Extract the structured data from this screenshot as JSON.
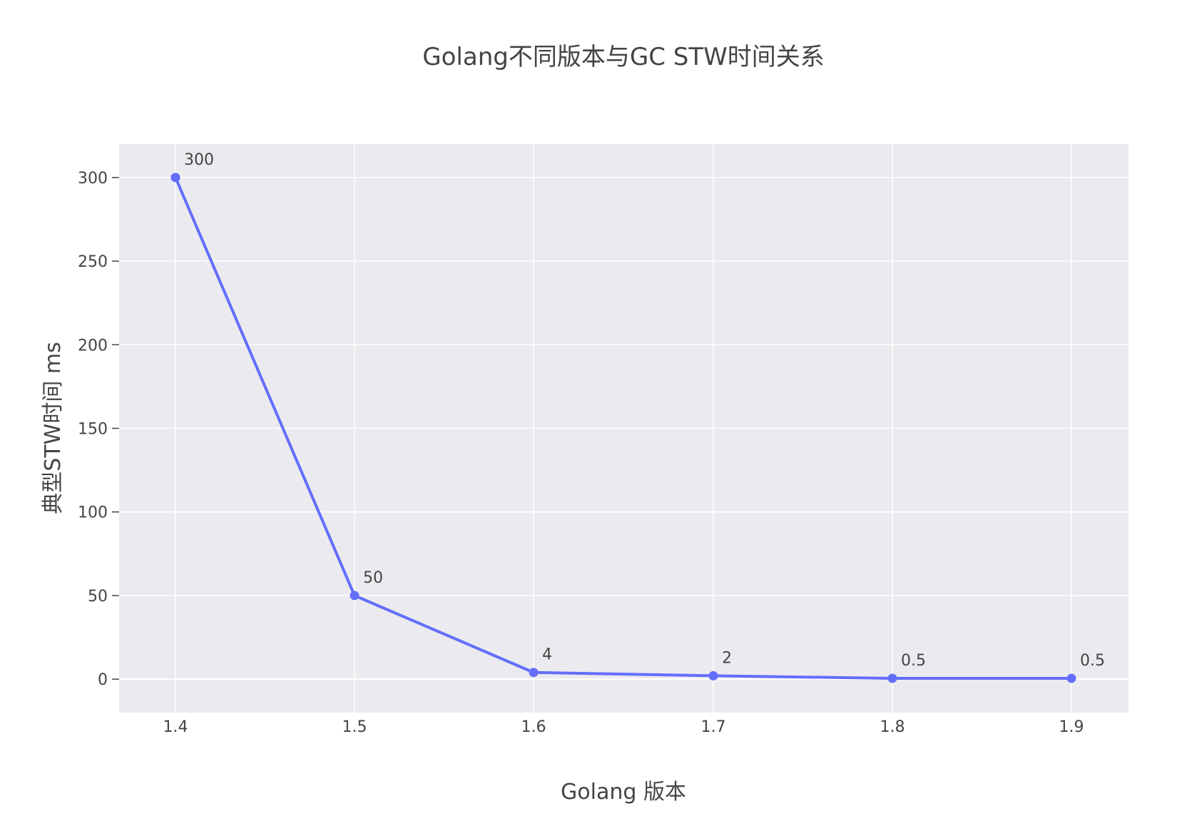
{
  "chart_data": {
    "type": "line",
    "title": "Golang不同版本与GC STW时间关系",
    "xlabel": "Golang 版本",
    "ylabel": "典型STW时间 ms",
    "x": [
      "1.4",
      "1.5",
      "1.6",
      "1.7",
      "1.8",
      "1.9"
    ],
    "series": [
      {
        "values": [
          300,
          50,
          4,
          2,
          0.5,
          0.5
        ],
        "labels": [
          "300",
          "50",
          "4",
          "2",
          "0.5",
          "0.5"
        ]
      }
    ],
    "ylim": [
      -20,
      320
    ],
    "yticks": [
      0,
      50,
      100,
      150,
      200,
      250,
      300
    ],
    "ytick_labels": [
      "0",
      "50",
      "100",
      "150",
      "200",
      "250",
      "300"
    ],
    "grid": true,
    "colors": {
      "line": "#636efa",
      "plot_bg": "#ebebef",
      "grid": "#ffffff",
      "text": "#444444",
      "tick": "#444444"
    }
  }
}
